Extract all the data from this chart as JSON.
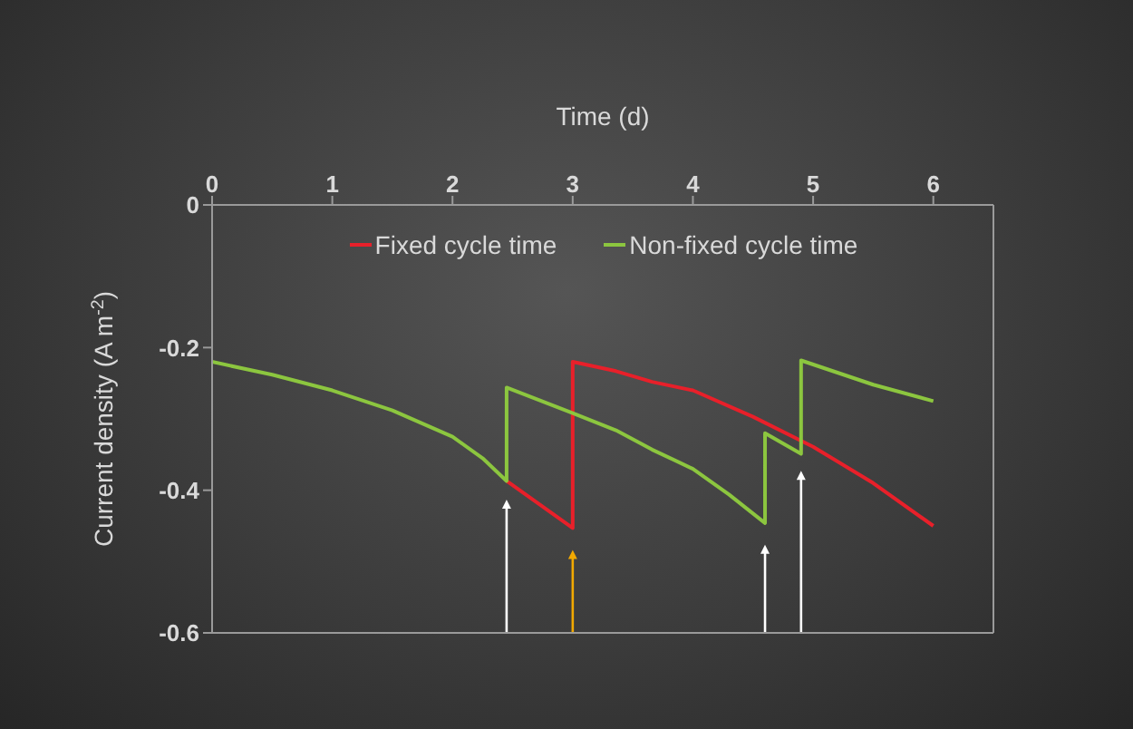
{
  "chart_data": {
    "type": "line",
    "xlabel": "Time (d)",
    "ylabel": "Current density (A m$^{-2}$)",
    "xlim": [
      0,
      6.5
    ],
    "xticks": [
      0,
      1,
      2,
      3,
      4,
      5,
      6
    ],
    "ylim": [
      -0.6,
      0
    ],
    "yticks": [
      0,
      -0.2,
      -0.4,
      -0.6
    ],
    "grid": false,
    "legend": "top",
    "marker": "none",
    "line_style": "solid",
    "series": [
      {
        "name": "Fixed cycle time",
        "color": "#e8202a",
        "x": [
          2.45,
          3,
          3,
          3.36,
          3.66,
          4,
          4.5,
          5,
          5.5,
          6
        ],
        "values": [
          -0.387,
          -0.453,
          -0.22,
          -0.233,
          -0.248,
          -0.26,
          -0.297,
          -0.339,
          -0.39,
          -0.45
        ]
      },
      {
        "name": "Non-fixed cycle time",
        "color": "#8cc63f",
        "x": [
          0,
          0.5,
          1,
          1.5,
          2,
          2.25,
          2.45,
          2.45,
          3,
          3.36,
          3.66,
          4,
          4.3,
          4.6,
          4.6,
          4.9,
          4.9,
          5.5,
          6
        ],
        "values": [
          -0.22,
          -0.238,
          -0.26,
          -0.288,
          -0.325,
          -0.355,
          -0.387,
          -0.256,
          -0.292,
          -0.316,
          -0.343,
          -0.37,
          -0.406,
          -0.446,
          -0.32,
          -0.349,
          -0.218,
          -0.252,
          -0.275
        ]
      }
    ]
  }
}
